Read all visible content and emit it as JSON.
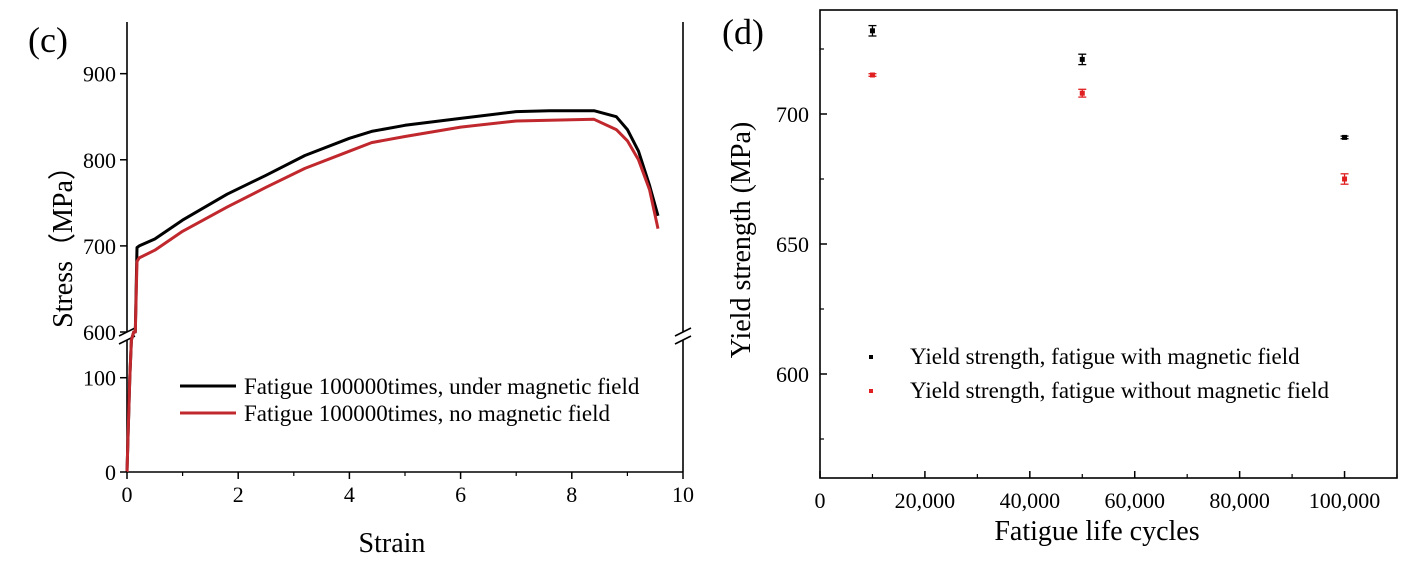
{
  "chart_data": [
    {
      "panel": "(c)",
      "type": "line",
      "xlabel": "Strain",
      "ylabel": "Stress（MPa）",
      "xlim": [
        0,
        10
      ],
      "ylim_upper": [
        600,
        960
      ],
      "ylim_lower": [
        0,
        140
      ],
      "axis_break": true,
      "x_ticks": [
        "0",
        "2",
        "4",
        "6",
        "8",
        "10"
      ],
      "x_tick_values": [
        0,
        2,
        4,
        6,
        8,
        10
      ],
      "y_ticks_upper": [
        "600",
        "700",
        "800",
        "900"
      ],
      "y_tick_values_upper": [
        600,
        700,
        800,
        900
      ],
      "y_ticks_lower": [
        "0",
        "100"
      ],
      "y_tick_values_lower": [
        0,
        100
      ],
      "legend_position": "bottom-right",
      "series": [
        {
          "name": "Fatigue 100000times, under magnetic field",
          "color": "#000000",
          "x": [
            0,
            0.02,
            0.05,
            0.08,
            0.12,
            0.15,
            0.18,
            0.22,
            0.5,
            1.0,
            1.8,
            2.5,
            3.2,
            4.0,
            4.4,
            5.0,
            6.0,
            7.0,
            7.6,
            8.4,
            8.8,
            9.0,
            9.2,
            9.4,
            9.55
          ],
          "y": [
            0,
            40,
            100,
            140,
            600,
            600,
            698,
            700,
            708,
            730,
            760,
            782,
            805,
            825,
            833,
            840,
            848,
            856,
            857,
            857,
            850,
            835,
            810,
            770,
            735
          ]
        },
        {
          "name": "Fatigue 100000times, no magnetic field",
          "color": "#c0282d",
          "x": [
            0,
            0.02,
            0.05,
            0.08,
            0.12,
            0.15,
            0.18,
            0.22,
            0.5,
            1.0,
            1.8,
            2.5,
            3.2,
            4.0,
            4.4,
            5.0,
            6.0,
            7.0,
            7.6,
            8.4,
            8.8,
            9.0,
            9.2,
            9.4,
            9.55
          ],
          "y": [
            0,
            40,
            100,
            140,
            600,
            600,
            682,
            686,
            695,
            717,
            745,
            768,
            790,
            810,
            820,
            827,
            838,
            845,
            846,
            847,
            835,
            822,
            800,
            765,
            720
          ]
        }
      ]
    },
    {
      "panel": "(d)",
      "type": "scatter",
      "xlabel": "Fatigue life cycles",
      "ylabel": "Yield strength (MPa)",
      "xlim": [
        0,
        110000
      ],
      "ylim": [
        560,
        740
      ],
      "x_ticks": [
        "0",
        "20,000",
        "40,000",
        "60,000",
        "80,000",
        "100,000"
      ],
      "x_tick_values": [
        0,
        20000,
        40000,
        60000,
        80000,
        100000
      ],
      "y_ticks": [
        "600",
        "650",
        "700"
      ],
      "y_tick_values": [
        600,
        650,
        700
      ],
      "legend_position": "bottom-right",
      "series": [
        {
          "name": "Yield strength, fatigue with magnetic field",
          "color": "#000000",
          "x": [
            10000,
            50000,
            100000
          ],
          "y": [
            732,
            721,
            691
          ],
          "err": [
            2,
            2,
            0.5
          ]
        },
        {
          "name": "Yield strength, fatigue without magnetic field",
          "color": "#e02020",
          "x": [
            10000,
            50000,
            100000
          ],
          "y": [
            715,
            708,
            675
          ],
          "err": [
            0.5,
            1.5,
            2
          ]
        }
      ]
    }
  ]
}
